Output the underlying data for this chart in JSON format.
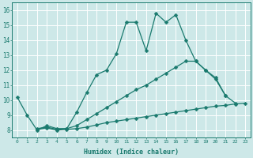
{
  "line1_x": [
    0,
    1,
    2,
    3,
    4,
    5,
    6,
    7,
    8,
    9,
    10,
    11,
    12,
    13,
    14,
    15,
    16,
    17,
    18,
    19,
    20,
    21,
    22
  ],
  "line1_y": [
    10.2,
    9.0,
    8.0,
    8.3,
    8.1,
    8.1,
    9.2,
    10.5,
    11.7,
    12.0,
    13.1,
    15.2,
    15.2,
    13.3,
    15.8,
    15.2,
    15.7,
    14.0,
    12.6,
    12.0,
    11.4,
    10.3,
    9.8
  ],
  "line2_x": [
    2,
    3,
    4,
    5,
    6,
    7,
    8,
    9,
    10,
    11,
    12,
    13,
    14,
    15,
    16,
    17,
    18,
    19,
    20,
    21
  ],
  "line2_y": [
    8.1,
    8.2,
    8.05,
    8.1,
    8.3,
    8.7,
    9.1,
    9.5,
    9.9,
    10.3,
    10.7,
    11.0,
    11.4,
    11.8,
    12.2,
    12.6,
    12.6,
    12.0,
    11.5,
    10.3
  ],
  "line3_x": [
    2,
    3,
    4,
    5,
    6,
    7,
    8,
    9,
    10,
    11,
    12,
    13,
    14,
    15,
    16,
    17,
    18,
    19,
    20,
    21,
    22,
    23
  ],
  "line3_y": [
    8.05,
    8.15,
    8.0,
    8.05,
    8.1,
    8.2,
    8.35,
    8.5,
    8.6,
    8.7,
    8.8,
    8.9,
    9.0,
    9.1,
    9.2,
    9.3,
    9.4,
    9.5,
    9.6,
    9.65,
    9.75,
    9.8
  ],
  "color": "#1a7a6e",
  "bg_color": "#cde8e8",
  "grid_color": "#ffffff",
  "xlabel": "Humidex (Indice chaleur)",
  "xlim": [
    -0.5,
    23.5
  ],
  "ylim": [
    7.5,
    16.5
  ],
  "xticks": [
    0,
    1,
    2,
    3,
    4,
    5,
    6,
    7,
    8,
    9,
    10,
    11,
    12,
    13,
    14,
    15,
    16,
    17,
    18,
    19,
    20,
    21,
    22,
    23
  ],
  "yticks": [
    8,
    9,
    10,
    11,
    12,
    13,
    14,
    15,
    16
  ],
  "markersize": 2.5,
  "linewidth": 0.9
}
